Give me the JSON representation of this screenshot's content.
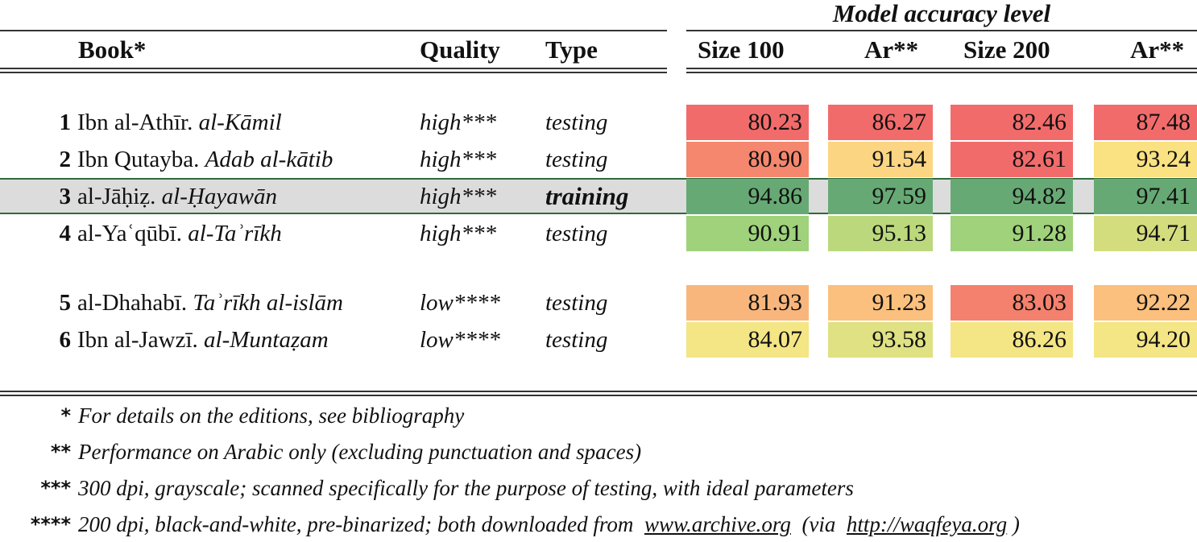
{
  "header": {
    "super_title": "Model accuracy level",
    "columns": {
      "book": "Book*",
      "quality": "Quality",
      "type": "Type",
      "size100": "Size 100",
      "ar1": "Ar**",
      "size200": "Size 200",
      "ar2": "Ar**"
    }
  },
  "rows": [
    {
      "num": "1",
      "author": "Ibn al-Athīr.",
      "title": "al-Kāmil",
      "quality": "high***",
      "type": "testing",
      "values": [
        "80.23",
        "86.27",
        "82.46",
        "87.48"
      ],
      "colors": [
        "#f26b6b",
        "#f26b6b",
        "#f26b6b",
        "#f26b6b"
      ]
    },
    {
      "num": "2",
      "author": "Ibn Qutayba.",
      "title": "Adab al-kātib",
      "quality": "high***",
      "type": "testing",
      "values": [
        "80.90",
        "91.54",
        "82.61",
        "93.24"
      ],
      "colors": [
        "#f4876e",
        "#fcd583",
        "#f26b6b",
        "#fae182"
      ]
    },
    {
      "num": "3",
      "author": "al-Jāḥiẓ.",
      "title": "al-Ḥayawān",
      "quality": "high***",
      "type": "training",
      "values": [
        "94.86",
        "97.59",
        "94.82",
        "97.41"
      ],
      "colors": [
        "#67a974",
        "#67a974",
        "#67a974",
        "#67a974"
      ]
    },
    {
      "num": "4",
      "author": "al-Yaʿqūbī.",
      "title": "al-Taʾrīkh",
      "quality": "high***",
      "type": "testing",
      "values": [
        "90.91",
        "95.13",
        "91.28",
        "94.71"
      ],
      "colors": [
        "#9fd27b",
        "#bbd97c",
        "#9fd27b",
        "#d3dd7e"
      ]
    },
    {
      "num": "5",
      "author": "al-Dhahabī.",
      "title": "Taʾrīkh al-islām",
      "quality": "low****",
      "type": "testing",
      "values": [
        "81.93",
        "91.23",
        "83.03",
        "92.22"
      ],
      "colors": [
        "#f9b67c",
        "#fbc07e",
        "#f4816d",
        "#fbc07e"
      ]
    },
    {
      "num": "6",
      "author": "Ibn al-Jawzī.",
      "title": "al-Muntaẓam",
      "quality": "low****",
      "type": "testing",
      "values": [
        "84.07",
        "93.58",
        "86.26",
        "94.20"
      ],
      "colors": [
        "#f4e585",
        "#dfe182",
        "#f4e585",
        "#f4e585"
      ]
    }
  ],
  "notes": [
    {
      "mark": "*",
      "text": "For details on the editions, see bibliography"
    },
    {
      "mark": "**",
      "text": "Performance on Arabic only (excluding punctuation and spaces)"
    },
    {
      "mark": "***",
      "text": "300 dpi, grayscale; scanned specifically for the purpose of testing, with ideal parameters"
    },
    {
      "mark": "****",
      "text": "200 dpi, black-and-white, pre-binarized; both downloaded from",
      "link1": "www.archive.org",
      "mid": "(via",
      "link2": "http://waqfeya.org",
      "end": ")"
    }
  ]
}
